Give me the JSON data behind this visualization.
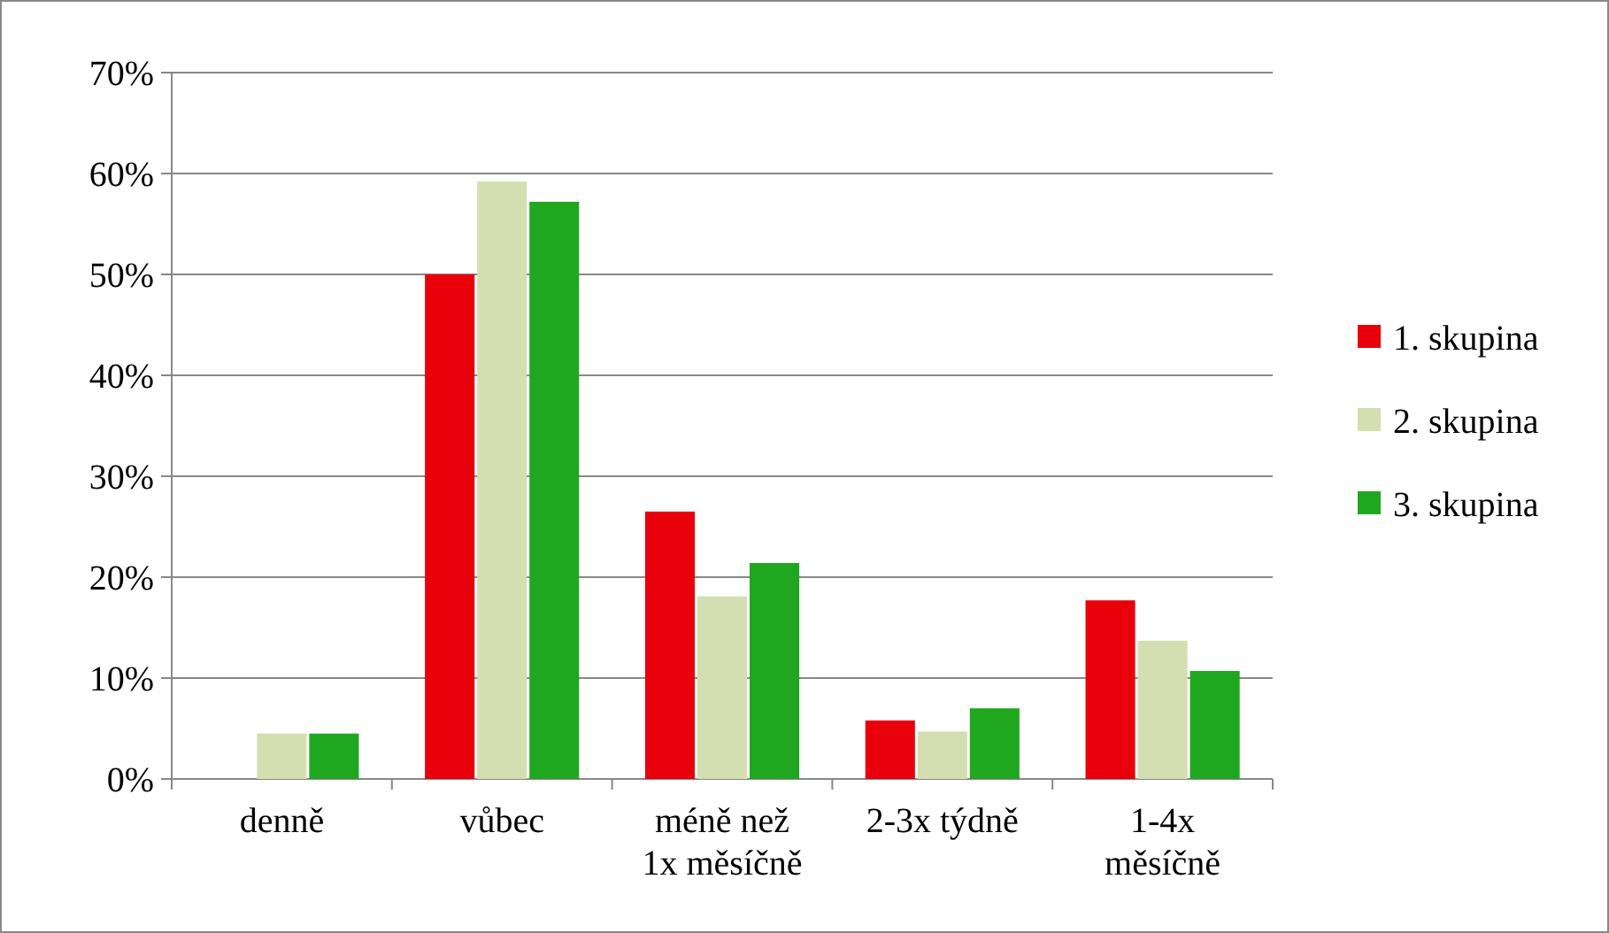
{
  "chart_data": {
    "type": "bar",
    "categories": [
      "denně",
      "vůbec",
      "méně než\n1x měsíčně",
      "2-3x týdně",
      "1-4x\nměsíčně"
    ],
    "series": [
      {
        "name": "1. skupina",
        "color": "#e8000b",
        "values": [
          0,
          50,
          26.5,
          5.8,
          17.7
        ]
      },
      {
        "name": "2. skupina",
        "color": "#d4deb0",
        "values": [
          4.5,
          59.2,
          18.1,
          4.7,
          13.7
        ]
      },
      {
        "name": "3. skupina",
        "color": "#1fa71f",
        "values": [
          4.5,
          57.2,
          21.4,
          7,
          10.7
        ]
      }
    ],
    "ylim": [
      0,
      70
    ],
    "yticks": [
      {
        "value": 0,
        "label": "0%"
      },
      {
        "value": 10,
        "label": "10%"
      },
      {
        "value": 20,
        "label": "20%"
      },
      {
        "value": 30,
        "label": "30%"
      },
      {
        "value": 40,
        "label": "40%"
      },
      {
        "value": 50,
        "label": "50%"
      },
      {
        "value": 60,
        "label": "60%"
      },
      {
        "value": 70,
        "label": "70%"
      }
    ],
    "grid": "y",
    "legend": "right"
  }
}
